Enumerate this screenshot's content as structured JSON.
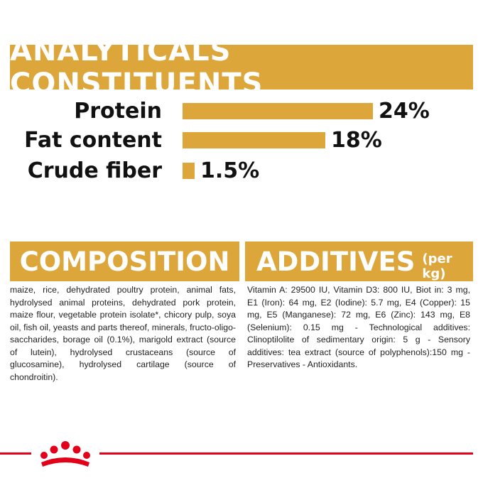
{
  "analytics": {
    "title": "ANALYTICALS CONSTITUENTS",
    "bar_color": "#dca63a",
    "max_percent": 24,
    "items": [
      {
        "label": "Protein",
        "value_text": "24%",
        "percent": 24
      },
      {
        "label": "Fat content",
        "value_text": "18%",
        "percent": 18
      },
      {
        "label": "Crude fiber",
        "value_text": "1.5%",
        "percent": 1.5
      }
    ]
  },
  "composition": {
    "title": "COMPOSITION",
    "text": "maize, rice, dehydrated poultry protein, animal fats, hydrolysed animal proteins, dehydrated pork protein, maize flour, vegetable protein isolate*, chicory pulp, soya oil, fish oil, yeasts and parts thereof, minerals, fructo-oligo-saccharides, borage oil (0.1%), marigold extract (source of lutein), hydrolysed crustaceans (source of glucosamine), hydrolysed cartilage (source of chondroitin)."
  },
  "additives": {
    "title": "ADDITIVES",
    "subtitle": "(per kg)",
    "text": "Vitamin A: 29500 IU, Vitamin D3: 800 IU, Biot in: 3 mg, E1 (Iron): 64 mg, E2 (Iodine): 5.7 mg, E4 (Copper): 15 mg, E5 (Manganese): 72 mg, E6 (Zinc): 143 mg, E8 (Selenium): 0.15 mg - Technological additives: Clinoptilolite of sedimentary origin: 5 g - Sensory additives: tea extract (source of polyphenols):150 mg - Preservatives - Antioxidants."
  },
  "footer": {
    "logo_icon": "crown-logo-icon",
    "line_color": "#e2001a"
  }
}
